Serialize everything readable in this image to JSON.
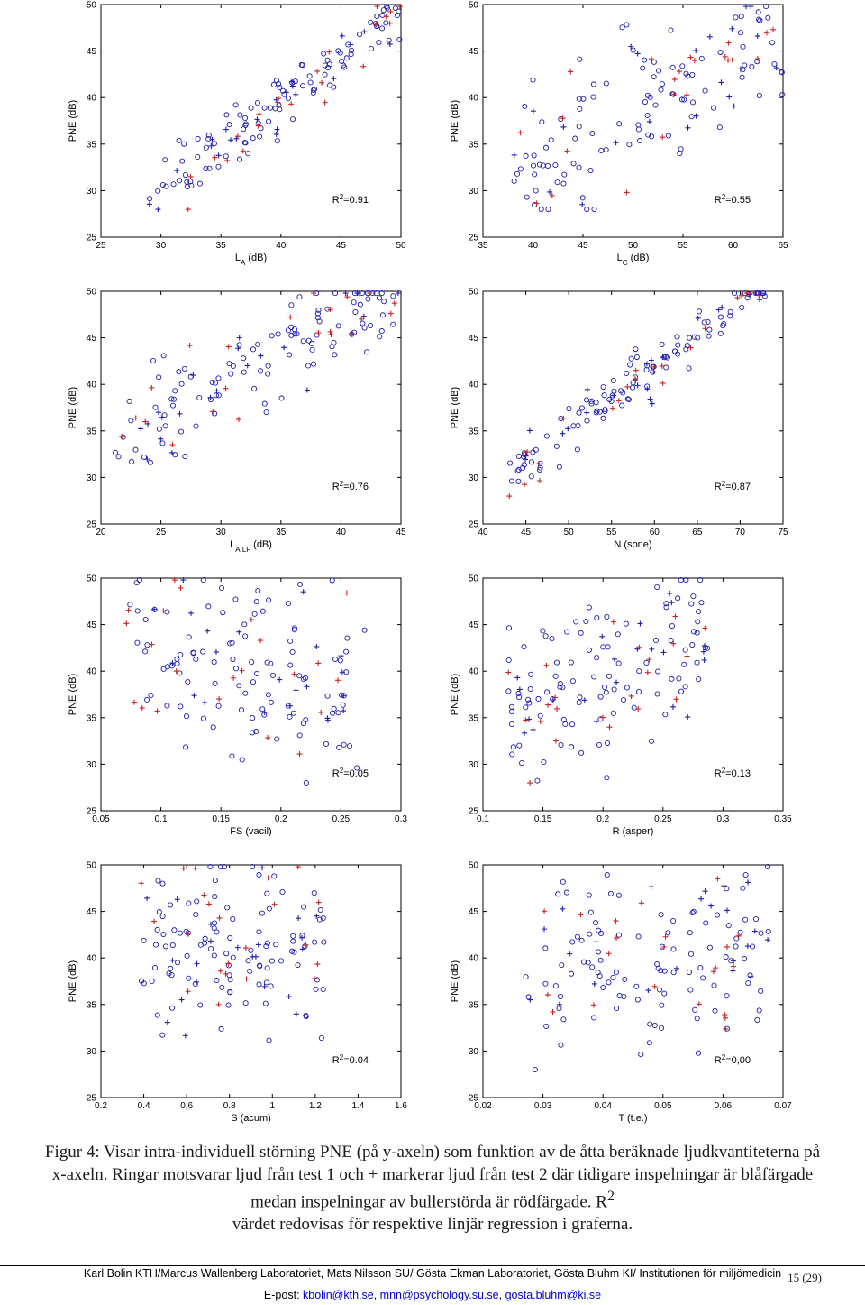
{
  "colors": {
    "blue": "#1f1fb0",
    "red": "#cc2222",
    "axis": "#000000"
  },
  "chart_data": [
    {
      "type": "scatter",
      "xlabel_main": "L",
      "xlabel_sub": "A",
      "xlabel_unit": " (dB)",
      "ylabel": "PNE (dB)",
      "xlim": [
        25,
        50
      ],
      "ylim": [
        25,
        50
      ],
      "xticks": [
        25,
        30,
        35,
        40,
        45,
        50
      ],
      "yticks": [
        25,
        30,
        35,
        40,
        45,
        50
      ],
      "r2_label": "R",
      "r2_value": "=0.91",
      "slope": 0.95,
      "intercept": 1.5,
      "sd": 1.6,
      "xrange": [
        29,
        50
      ],
      "seed": 11,
      "n_circle": 105,
      "n_plus_blue": 22,
      "n_plus_red": 22
    },
    {
      "type": "scatter",
      "xlabel_main": "L",
      "xlabel_sub": "C",
      "xlabel_unit": " (dB)",
      "ylabel": "PNE (dB)",
      "xlim": [
        35,
        65
      ],
      "ylim": [
        25,
        50
      ],
      "xticks": [
        35,
        40,
        45,
        50,
        55,
        60,
        65
      ],
      "yticks": [
        25,
        30,
        35,
        40,
        45,
        50
      ],
      "r2_label": "R",
      "r2_value": "=0.55",
      "slope": 0.55,
      "intercept": 11,
      "sd": 4,
      "xrange": [
        38,
        65
      ],
      "seed": 23,
      "n_circle": 105,
      "n_plus_blue": 22,
      "n_plus_red": 22
    },
    {
      "type": "scatter",
      "xlabel_main": "L",
      "xlabel_sub": "A,LF",
      "xlabel_unit": " (dB)",
      "ylabel": "PNE (dB)",
      "xlim": [
        20,
        45
      ],
      "ylim": [
        25,
        50
      ],
      "xticks": [
        20,
        25,
        30,
        35,
        40,
        45
      ],
      "yticks": [
        25,
        30,
        35,
        40,
        45,
        50
      ],
      "r2_label": "R",
      "r2_value": "=0.76",
      "slope": 0.7,
      "intercept": 19,
      "sd": 2.6,
      "xrange": [
        21,
        45
      ],
      "seed": 37,
      "n_circle": 105,
      "n_plus_blue": 22,
      "n_plus_red": 22
    },
    {
      "type": "scatter",
      "xlabel_main": "N (sone)",
      "xlabel_sub": "",
      "xlabel_unit": "",
      "ylabel": "PNE (dB)",
      "xlim": [
        40,
        75
      ],
      "ylim": [
        25,
        50
      ],
      "xticks": [
        40,
        45,
        50,
        55,
        60,
        65,
        70,
        75
      ],
      "yticks": [
        25,
        30,
        35,
        40,
        45,
        50
      ],
      "r2_label": "R",
      "r2_value": "=0.87",
      "slope": 0.7,
      "intercept": 0,
      "sd": 1.3,
      "xrange": [
        43,
        73
      ],
      "seed": 41,
      "n_circle": 105,
      "n_plus_blue": 22,
      "n_plus_red": 22
    },
    {
      "type": "scatter",
      "xlabel_main": "FS (vacil)",
      "xlabel_sub": "",
      "xlabel_unit": "",
      "ylabel": "PNE (dB)",
      "xlim": [
        0.05,
        0.3
      ],
      "ylim": [
        25,
        50
      ],
      "xticks": [
        0.05,
        0.1,
        0.15,
        0.2,
        0.25,
        0.3
      ],
      "yticks": [
        25,
        30,
        35,
        40,
        45,
        50
      ],
      "r2_label": "R",
      "r2_value": "=0.05",
      "slope": -30,
      "intercept": 46,
      "sd": 5,
      "xrange": [
        0.07,
        0.27
      ],
      "seed": 53,
      "n_circle": 105,
      "n_plus_blue": 22,
      "n_plus_red": 22
    },
    {
      "type": "scatter",
      "xlabel_main": "R (asper)",
      "xlabel_sub": "",
      "xlabel_unit": "",
      "ylabel": "PNE (dB)",
      "xlim": [
        0.1,
        0.35
      ],
      "ylim": [
        25,
        50
      ],
      "xticks": [
        0.1,
        0.15,
        0.2,
        0.25,
        0.3,
        0.35
      ],
      "yticks": [
        25,
        30,
        35,
        40,
        45,
        50
      ],
      "r2_label": "R",
      "r2_value": "=0.13",
      "slope": 60,
      "intercept": 27,
      "sd": 4.5,
      "xrange": [
        0.12,
        0.29
      ],
      "seed": 61,
      "n_circle": 105,
      "n_plus_blue": 22,
      "n_plus_red": 22
    },
    {
      "type": "scatter",
      "xlabel_main": "S (acum)",
      "xlabel_sub": "",
      "xlabel_unit": "",
      "ylabel": "PNE (dB)",
      "xlim": [
        0.2,
        1.6
      ],
      "ylim": [
        25,
        50
      ],
      "xticks": [
        0.2,
        0.4,
        0.6,
        0.8,
        1,
        1.2,
        1.4,
        1.6
      ],
      "yticks": [
        25,
        30,
        35,
        40,
        45,
        50
      ],
      "r2_label": "R",
      "r2_value": "=0.04",
      "slope": 2,
      "intercept": 39,
      "sd": 5,
      "xrange": [
        0.38,
        1.25
      ],
      "seed": 71,
      "n_circle": 105,
      "n_plus_blue": 22,
      "n_plus_red": 22
    },
    {
      "type": "scatter",
      "xlabel_main": "T (t.e.)",
      "xlabel_sub": "",
      "xlabel_unit": "",
      "ylabel": "PNE (dB)",
      "xlim": [
        0.02,
        0.07
      ],
      "ylim": [
        25,
        50
      ],
      "xticks": [
        0.02,
        0.03,
        0.04,
        0.05,
        0.06,
        0.07
      ],
      "yticks": [
        25,
        30,
        35,
        40,
        45,
        50
      ],
      "r2_label": "R",
      "r2_value": "=0,00",
      "slope": 0,
      "intercept": 40,
      "sd": 5,
      "xrange": [
        0.027,
        0.068
      ],
      "seed": 83,
      "n_circle": 105,
      "n_plus_blue": 22,
      "n_plus_red": 22
    }
  ],
  "caption": {
    "line1": "Figur 4: Visar intra-individuell störning PNE (på y-axeln) som funktion av de åtta beräknade ljudkvantiteterna på x-axeln.  Ringar motsvarar ljud från test 1 och + markerar ljud från test 2 där tidigare inspelningar är blåfärgade medan inspelningar av bullerstörda är rödfärgade. R",
    "sup": "2",
    "line2": "värdet redovisas för respektive linjär regression i graferna."
  },
  "page_number": "15 (29)",
  "footer": {
    "line1": "Karl Bolin KTH/Marcus Wallenberg Laboratoriet, Mats Nilsson SU/ Gösta Ekman Laboratoriet, Gösta Bluhm KI/ Institutionen för miljömedicin",
    "email_prefix": "E-post: ",
    "email1": "kbolin@kth.se",
    "sep1": ", ",
    "email2": "mnn@psychology.su.se",
    "sep2": ", ",
    "email3": "gosta.bluhm@ki.se"
  }
}
